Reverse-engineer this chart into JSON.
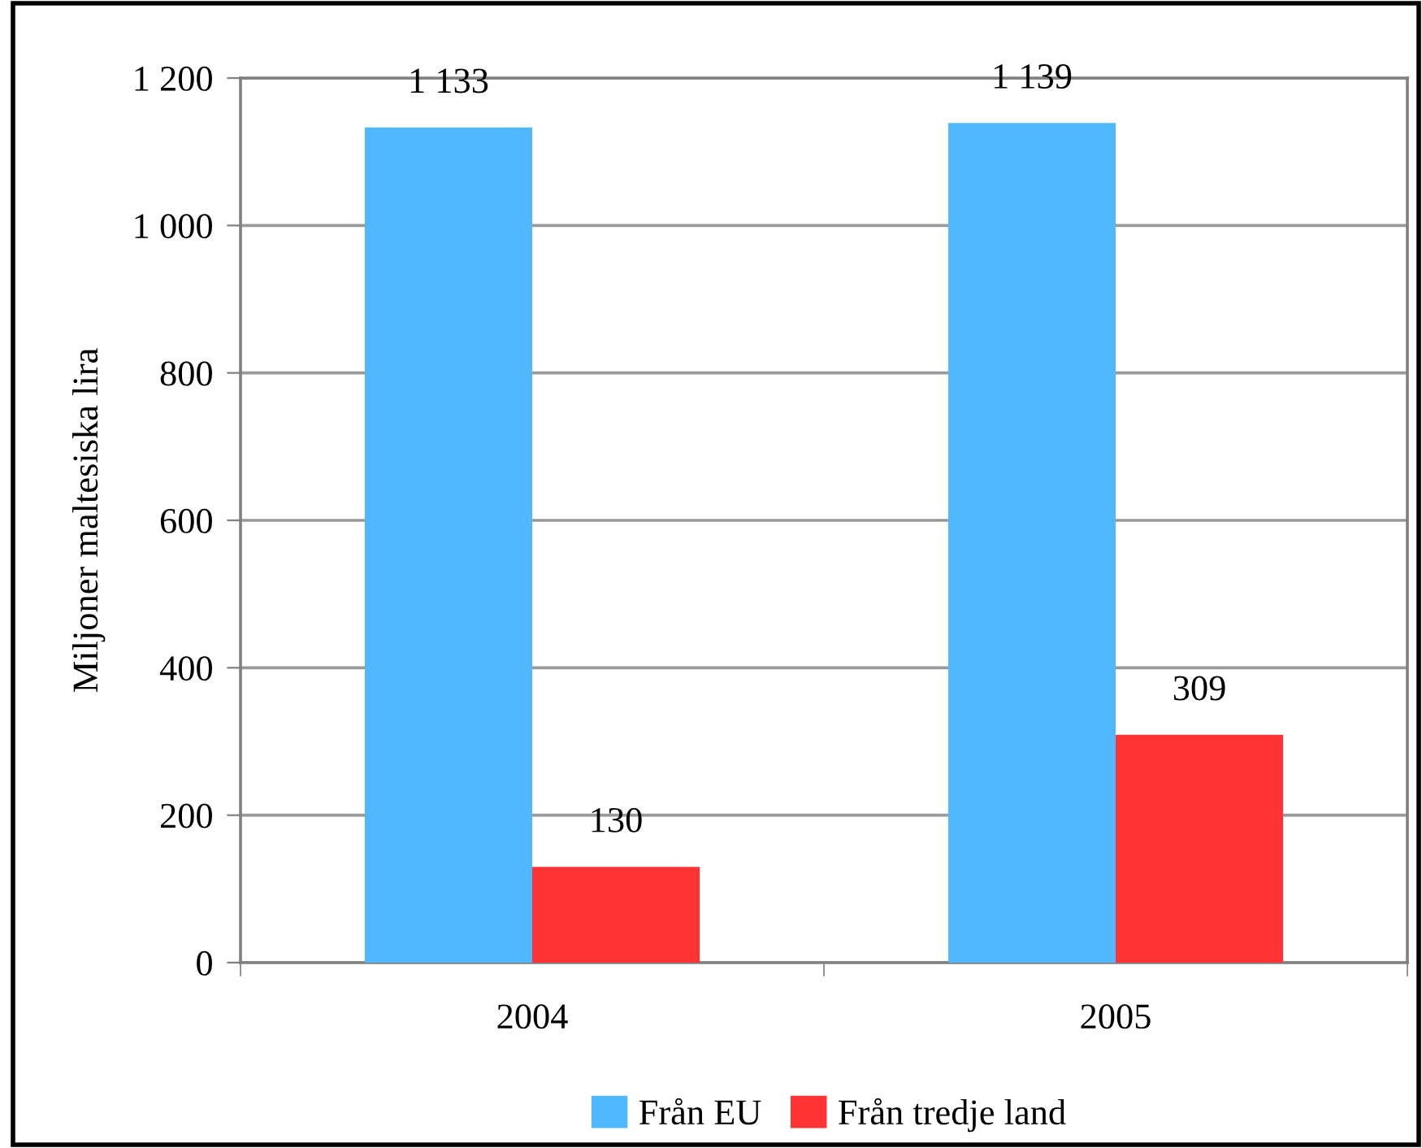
{
  "chart_data": {
    "type": "bar",
    "ylabel": "Miljoner maltesiska lira",
    "categories": [
      "2004",
      "2005"
    ],
    "series": [
      {
        "name": "Från EU",
        "color": "#4fb8ff",
        "values": [
          1133,
          1139
        ],
        "value_labels": [
          "1 133",
          "1 139"
        ]
      },
      {
        "name": "Från tredje land",
        "color": "#ff3333",
        "values": [
          130,
          309
        ],
        "value_labels": [
          "130",
          "309"
        ]
      }
    ],
    "ylim": [
      0,
      1200
    ],
    "yticks": [
      0,
      200,
      400,
      600,
      800,
      {
        "value": 1000,
        "label": "1 000"
      },
      {
        "value": 1200,
        "label": "1 200"
      }
    ],
    "grid": "y",
    "legend": "bottom"
  }
}
